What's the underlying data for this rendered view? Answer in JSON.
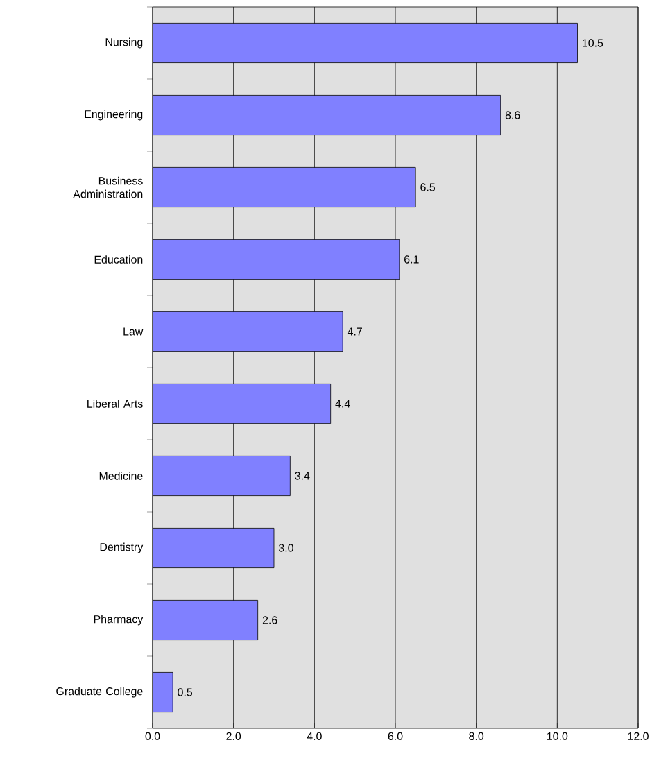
{
  "chart_data": {
    "type": "bar",
    "orientation": "horizontal",
    "categories": [
      "Nursing",
      "Engineering",
      "Business Administration",
      "Education",
      "Law",
      "Liberal Arts",
      "Medicine",
      "Dentistry",
      "Pharmacy",
      "Graduate College"
    ],
    "values": [
      10.5,
      8.6,
      6.5,
      6.1,
      4.7,
      4.4,
      3.4,
      3.0,
      2.6,
      0.5
    ],
    "value_labels": [
      "10.5",
      "8.6",
      "6.5",
      "6.1",
      "4.7",
      "4.4",
      "3.4",
      "3.0",
      "2.6",
      "0.5"
    ],
    "color": "#8080ff",
    "xlim": [
      0,
      12
    ],
    "xticks": [
      {
        "value": 0,
        "label": "0.0"
      },
      {
        "value": 2,
        "label": "2.0"
      },
      {
        "value": 4,
        "label": "4.0"
      },
      {
        "value": 6,
        "label": "6.0"
      },
      {
        "value": 8,
        "label": "8.0"
      },
      {
        "value": 10,
        "label": "10.0"
      },
      {
        "value": 12,
        "label": "12.0"
      }
    ],
    "grid": "x"
  }
}
